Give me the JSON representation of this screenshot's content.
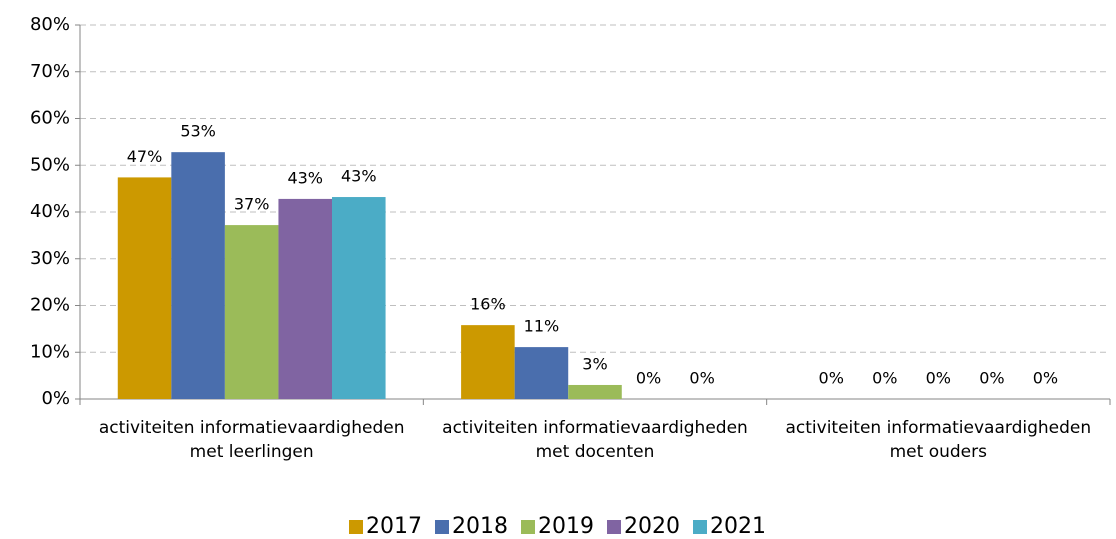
{
  "chart_data": {
    "type": "bar",
    "categories": [
      "activiteiten informatievaardigheden met leerlingen",
      "activiteiten informatievaardigheden met docenten",
      "activiteiten informatievaardigheden met ouders"
    ],
    "series": [
      {
        "name": "2017",
        "color": "#cc9900",
        "values": [
          47.4,
          15.8,
          0
        ],
        "value_labels": [
          "47%",
          "16%",
          "0%"
        ]
      },
      {
        "name": "2018",
        "color": "#4a6ead",
        "values": [
          52.8,
          11.1,
          0
        ],
        "value_labels": [
          "53%",
          "11%",
          "0%"
        ]
      },
      {
        "name": "2019",
        "color": "#9bbb59",
        "values": [
          37.2,
          3.0,
          0
        ],
        "value_labels": [
          "37%",
          "3%",
          "0%"
        ]
      },
      {
        "name": "2020",
        "color": "#8064a2",
        "values": [
          42.8,
          0,
          0
        ],
        "value_labels": [
          "43%",
          "0%",
          "0%"
        ]
      },
      {
        "name": "2021",
        "color": "#4bacc6",
        "values": [
          43.2,
          0,
          0
        ],
        "value_labels": [
          "43%",
          "0%",
          "0%"
        ]
      }
    ],
    "ylim": [
      0,
      80
    ],
    "yticks": [
      {
        "value": 0,
        "label": "0%"
      },
      {
        "value": 10,
        "label": "10%"
      },
      {
        "value": 20,
        "label": "20%"
      },
      {
        "value": 30,
        "label": "30%"
      },
      {
        "value": 40,
        "label": "40%"
      },
      {
        "value": 50,
        "label": "50%"
      },
      {
        "value": 60,
        "label": "60%"
      },
      {
        "value": 70,
        "label": "70%"
      },
      {
        "value": 80,
        "label": "80%"
      }
    ],
    "grid": true,
    "legend": "bottom"
  }
}
